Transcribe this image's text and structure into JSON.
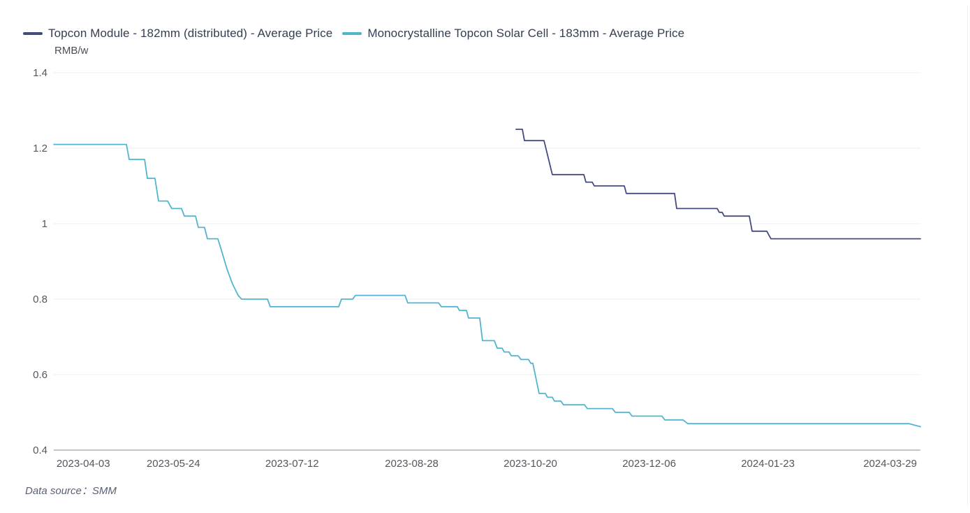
{
  "legend": {
    "items": [
      {
        "label": "Topcon Module - 182mm (distributed) - Average Price",
        "color": "#434b80"
      },
      {
        "label": "Monocrystalline Topcon Solar Cell - 183mm - Average Price",
        "color": "#52b5ce"
      }
    ]
  },
  "y_axis_unit": "RMB/w",
  "footer": {
    "text": "Data source：SMM"
  },
  "colors": {
    "module_line": "#434b80",
    "cell_line": "#52b5ce",
    "gridline": "#ebecef",
    "axis_line": "#898e97",
    "tick_text": "#54565c"
  },
  "chart_data": {
    "type": "line",
    "title": "",
    "xlabel": "",
    "ylabel": "RMB/w",
    "ylim": [
      0.4,
      1.4
    ],
    "grid": true,
    "legend_position": "top-left",
    "y_ticks": [
      0.4,
      0.6,
      0.8,
      1,
      1.2,
      1.4
    ],
    "y_tick_labels": [
      "0.4",
      "0.6",
      "0.8",
      "1",
      "1.2",
      "1.4"
    ],
    "x_ticks": [
      {
        "label": "2023-04-03",
        "pos": 0.034
      },
      {
        "label": "2023-05-24",
        "pos": 0.138
      },
      {
        "label": "2023-07-12",
        "pos": 0.275
      },
      {
        "label": "2023-08-28",
        "pos": 0.413
      },
      {
        "label": "2023-10-20",
        "pos": 0.55
      },
      {
        "label": "2023-12-06",
        "pos": 0.687
      },
      {
        "label": "2024-01-23",
        "pos": 0.824
      },
      {
        "label": "2024-03-29",
        "pos": 0.965
      }
    ],
    "series": [
      {
        "name": "Topcon Module - 182mm (distributed) - Average Price",
        "id": "module",
        "color": "#434b80",
        "unit": "RMB/w",
        "points": [
          [
            0.5334,
            1.25
          ],
          [
            0.5407,
            1.25
          ],
          [
            0.5431,
            1.22
          ],
          [
            0.5657,
            1.22
          ],
          [
            0.5753,
            1.13
          ],
          [
            0.6116,
            1.13
          ],
          [
            0.614,
            1.11
          ],
          [
            0.6213,
            1.11
          ],
          [
            0.6237,
            1.1
          ],
          [
            0.6583,
            1.1
          ],
          [
            0.6607,
            1.08
          ],
          [
            0.7163,
            1.08
          ],
          [
            0.7188,
            1.04
          ],
          [
            0.7655,
            1.04
          ],
          [
            0.7679,
            1.03
          ],
          [
            0.7712,
            1.03
          ],
          [
            0.7736,
            1.02
          ],
          [
            0.8026,
            1.02
          ],
          [
            0.8058,
            0.98
          ],
          [
            0.8227,
            0.98
          ],
          [
            0.8275,
            0.96
          ],
          [
            1.0,
            0.96
          ]
        ]
      },
      {
        "name": "Monocrystalline Topcon Solar Cell - 183mm - Average Price",
        "id": "cell",
        "color": "#52b5ce",
        "unit": "RMB/w",
        "points": [
          [
            0.0,
            1.21
          ],
          [
            0.0838,
            1.21
          ],
          [
            0.087,
            1.17
          ],
          [
            0.1048,
            1.17
          ],
          [
            0.108,
            1.12
          ],
          [
            0.1168,
            1.12
          ],
          [
            0.1209,
            1.06
          ],
          [
            0.1313,
            1.06
          ],
          [
            0.1362,
            1.04
          ],
          [
            0.1475,
            1.04
          ],
          [
            0.1507,
            1.02
          ],
          [
            0.1636,
            1.02
          ],
          [
            0.1668,
            0.99
          ],
          [
            0.174,
            0.99
          ],
          [
            0.1773,
            0.96
          ],
          [
            0.1893,
            0.96
          ],
          [
            0.1934,
            0.93
          ],
          [
            0.1998,
            0.88
          ],
          [
            0.2063,
            0.84
          ],
          [
            0.2127,
            0.81
          ],
          [
            0.2167,
            0.8
          ],
          [
            0.2466,
            0.8
          ],
          [
            0.2498,
            0.78
          ],
          [
            0.3288,
            0.78
          ],
          [
            0.332,
            0.8
          ],
          [
            0.3449,
            0.8
          ],
          [
            0.3481,
            0.81
          ],
          [
            0.4053,
            0.81
          ],
          [
            0.4085,
            0.79
          ],
          [
            0.444,
            0.79
          ],
          [
            0.4472,
            0.78
          ],
          [
            0.4657,
            0.78
          ],
          [
            0.4681,
            0.77
          ],
          [
            0.4762,
            0.77
          ],
          [
            0.4786,
            0.75
          ],
          [
            0.4915,
            0.75
          ],
          [
            0.4947,
            0.69
          ],
          [
            0.5084,
            0.69
          ],
          [
            0.5117,
            0.67
          ],
          [
            0.5173,
            0.67
          ],
          [
            0.5197,
            0.66
          ],
          [
            0.5254,
            0.66
          ],
          [
            0.5278,
            0.65
          ],
          [
            0.5358,
            0.65
          ],
          [
            0.5391,
            0.64
          ],
          [
            0.5479,
            0.64
          ],
          [
            0.5504,
            0.63
          ],
          [
            0.5528,
            0.63
          ],
          [
            0.56,
            0.55
          ],
          [
            0.5673,
            0.55
          ],
          [
            0.5697,
            0.54
          ],
          [
            0.5753,
            0.54
          ],
          [
            0.5777,
            0.53
          ],
          [
            0.585,
            0.53
          ],
          [
            0.5882,
            0.52
          ],
          [
            0.6124,
            0.52
          ],
          [
            0.6156,
            0.51
          ],
          [
            0.6446,
            0.51
          ],
          [
            0.6479,
            0.5
          ],
          [
            0.664,
            0.5
          ],
          [
            0.6672,
            0.49
          ],
          [
            0.7018,
            0.49
          ],
          [
            0.7051,
            0.48
          ],
          [
            0.726,
            0.48
          ],
          [
            0.7317,
            0.47
          ],
          [
            0.9871,
            0.47
          ],
          [
            1.0,
            0.462
          ]
        ]
      }
    ]
  }
}
